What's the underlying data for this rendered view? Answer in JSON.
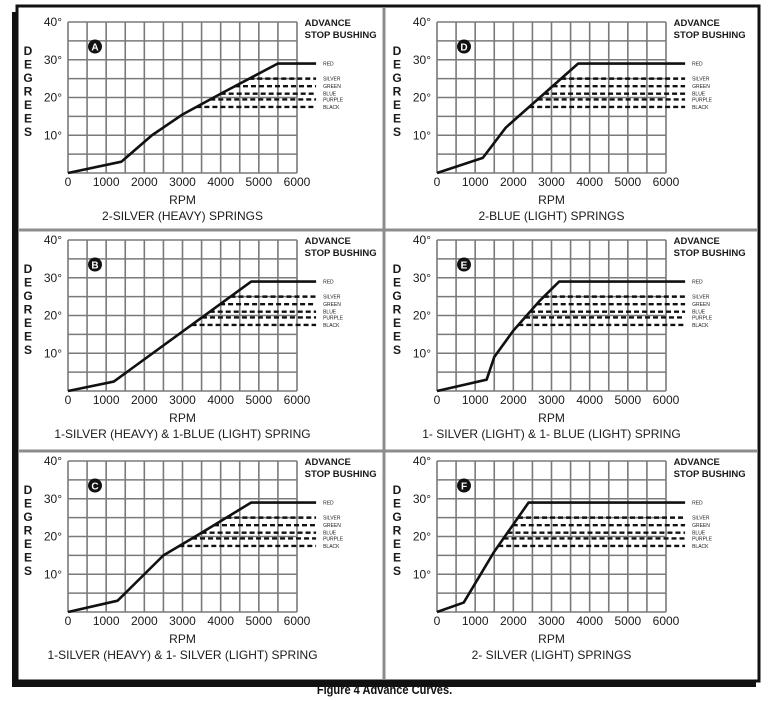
{
  "figure_caption": "Figure 4 Advance Curves.",
  "colors": {
    "ink": "#1a1a1a",
    "grid": "#7a7a7a",
    "divider": "#8c8c8c",
    "frame": "#111111"
  },
  "chart_data": [
    {
      "type": "line",
      "panel": "A",
      "caption": "2-SILVER (HEAVY) SPRINGS",
      "points": [
        [
          0,
          0
        ],
        [
          1400,
          3
        ],
        [
          2200,
          10
        ],
        [
          3000,
          15.5
        ],
        [
          4000,
          21
        ],
        [
          5500,
          29
        ],
        [
          6500,
          29
        ]
      ]
    },
    {
      "type": "line",
      "panel": "D",
      "caption": "2-BLUE (LIGHT) SPRINGS",
      "points": [
        [
          0,
          0
        ],
        [
          1200,
          4
        ],
        [
          1800,
          12
        ],
        [
          3700,
          29
        ],
        [
          6500,
          29
        ]
      ]
    },
    {
      "type": "line",
      "panel": "B",
      "caption": "1-SILVER (HEAVY) & 1-BLUE (LIGHT) SPRING",
      "points": [
        [
          0,
          0
        ],
        [
          1200,
          2.5
        ],
        [
          4800,
          29
        ],
        [
          6500,
          29
        ]
      ]
    },
    {
      "type": "line",
      "panel": "E",
      "caption": "1- SILVER (LIGHT) & 1- BLUE (LIGHT) SPRING",
      "points": [
        [
          0,
          0
        ],
        [
          1300,
          3
        ],
        [
          1500,
          9
        ],
        [
          2000,
          16
        ],
        [
          2700,
          24
        ],
        [
          3200,
          29
        ],
        [
          6500,
          29
        ]
      ]
    },
    {
      "type": "line",
      "panel": "C",
      "caption": "1-SILVER (HEAVY) & 1- SILVER (LIGHT) SPRING",
      "points": [
        [
          0,
          0
        ],
        [
          1300,
          3
        ],
        [
          2500,
          15
        ],
        [
          3500,
          21
        ],
        [
          4800,
          29
        ],
        [
          6500,
          29
        ]
      ]
    },
    {
      "type": "line",
      "panel": "F",
      "caption": "2- SILVER (LIGHT) SPRINGS",
      "points": [
        [
          0,
          0
        ],
        [
          700,
          2.5
        ],
        [
          1500,
          16
        ],
        [
          2400,
          29
        ],
        [
          6500,
          29
        ]
      ]
    }
  ],
  "axes": {
    "xlabel": "RPM",
    "ylabel": "DEGREES",
    "xlim": [
      0,
      6000
    ],
    "ylim": [
      0,
      40
    ],
    "x_ticks": [
      "0",
      "1000",
      "2000",
      "3000",
      "4000",
      "5000",
      "6000"
    ],
    "y_ticks": [
      "10°",
      "20°",
      "30°",
      "40°"
    ],
    "grid": true
  },
  "legend": {
    "title_line1": "ADVANCE",
    "title_line2": "STOP BUSHING",
    "stops": [
      {
        "name": "RED",
        "degrees": 29,
        "style": "solid"
      },
      {
        "name": "SILVER",
        "degrees": 25,
        "style": "dashed"
      },
      {
        "name": "GREEN",
        "degrees": 23,
        "style": "dashed"
      },
      {
        "name": "BLUE",
        "degrees": 21,
        "style": "dashed"
      },
      {
        "name": "PURPLE",
        "degrees": 19.5,
        "style": "dashed"
      },
      {
        "name": "BLACK",
        "degrees": 17.5,
        "style": "dashed"
      }
    ]
  }
}
